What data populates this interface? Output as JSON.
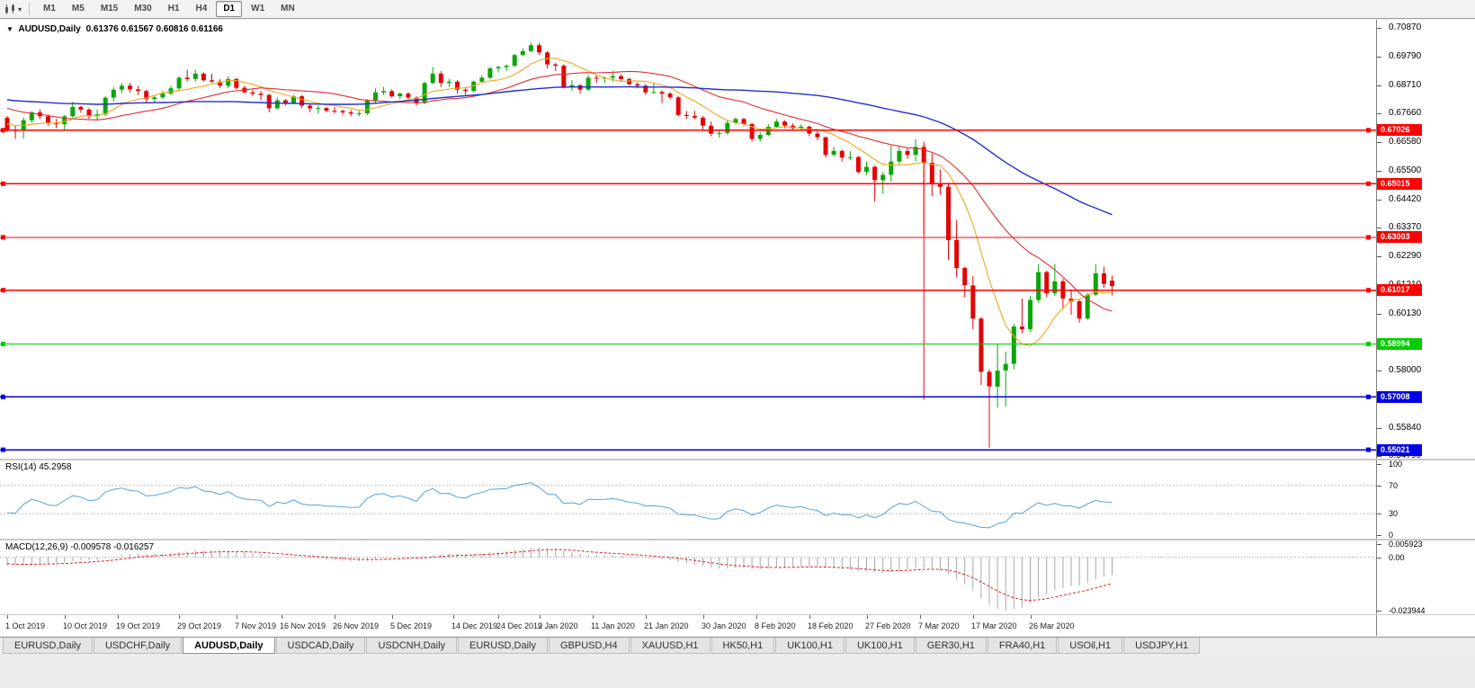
{
  "toolbar": {
    "timeframes": [
      "M1",
      "M5",
      "M15",
      "M30",
      "H1",
      "H4",
      "D1",
      "W1",
      "MN"
    ],
    "active_timeframe": "D1",
    "caret_glyph": "▾"
  },
  "chart_header": {
    "dropdown_glyph": "▼",
    "symbol": "AUDUSD,Daily",
    "ohlc": "0.61376 0.61567 0.60816 0.61166"
  },
  "chart_data": {
    "type": "candlestick",
    "symbol": "AUDUSD",
    "timeframe": "Daily",
    "current_ohlc": {
      "open": 0.61376,
      "high": 0.61567,
      "low": 0.60816,
      "close": 0.61166
    },
    "warmup_closes": [
      0.6825,
      0.684,
      0.6855,
      0.687,
      0.6885,
      0.6895,
      0.689,
      0.6875,
      0.689,
      0.6905,
      0.6895,
      0.688,
      0.6865,
      0.685,
      0.6835,
      0.682,
      0.6835,
      0.685,
      0.683,
      0.681,
      0.679,
      0.6775,
      0.676,
      0.6745,
      0.673,
      0.6745,
      0.673,
      0.6715,
      0.673,
      0.671
    ],
    "ohlc": [
      [
        0.675,
        0.6756,
        0.6695,
        0.6705
      ],
      [
        0.6705,
        0.672,
        0.667,
        0.67
      ],
      [
        0.67,
        0.675,
        0.6672,
        0.674
      ],
      [
        0.674,
        0.6775,
        0.673,
        0.677
      ],
      [
        0.677,
        0.678,
        0.6745,
        0.6755
      ],
      [
        0.6755,
        0.6762,
        0.672,
        0.673
      ],
      [
        0.673,
        0.6745,
        0.671,
        0.6725
      ],
      [
        0.6725,
        0.676,
        0.6705,
        0.6755
      ],
      [
        0.6755,
        0.681,
        0.675,
        0.679
      ],
      [
        0.679,
        0.6795,
        0.6768,
        0.678
      ],
      [
        0.678,
        0.6786,
        0.6745,
        0.6755
      ],
      [
        0.6755,
        0.678,
        0.674,
        0.6762
      ],
      [
        0.6762,
        0.683,
        0.6755,
        0.6825
      ],
      [
        0.6825,
        0.6865,
        0.681,
        0.6855
      ],
      [
        0.6855,
        0.688,
        0.684,
        0.687
      ],
      [
        0.687,
        0.688,
        0.6845,
        0.6856
      ],
      [
        0.6856,
        0.687,
        0.6835,
        0.685
      ],
      [
        0.685,
        0.6856,
        0.6805,
        0.682
      ],
      [
        0.682,
        0.6835,
        0.6805,
        0.6826
      ],
      [
        0.6826,
        0.685,
        0.682,
        0.684
      ],
      [
        0.684,
        0.687,
        0.6835,
        0.686
      ],
      [
        0.686,
        0.6905,
        0.685,
        0.69
      ],
      [
        0.69,
        0.693,
        0.6885,
        0.6895
      ],
      [
        0.6895,
        0.693,
        0.6885,
        0.6915
      ],
      [
        0.6915,
        0.692,
        0.6885,
        0.689
      ],
      [
        0.689,
        0.6915,
        0.688,
        0.6885
      ],
      [
        0.6885,
        0.6895,
        0.686,
        0.687
      ],
      [
        0.687,
        0.6905,
        0.686,
        0.6895
      ],
      [
        0.6895,
        0.69,
        0.6855,
        0.6862
      ],
      [
        0.6862,
        0.687,
        0.684,
        0.6845
      ],
      [
        0.6845,
        0.6855,
        0.683,
        0.684
      ],
      [
        0.684,
        0.685,
        0.6815,
        0.6835
      ],
      [
        0.6835,
        0.684,
        0.677,
        0.6785
      ],
      [
        0.6785,
        0.6825,
        0.678,
        0.6815
      ],
      [
        0.6815,
        0.682,
        0.6795,
        0.6805
      ],
      [
        0.6805,
        0.6835,
        0.68,
        0.683
      ],
      [
        0.683,
        0.6835,
        0.6785,
        0.6795
      ],
      [
        0.6795,
        0.68,
        0.677,
        0.6785
      ],
      [
        0.6785,
        0.6795,
        0.6765,
        0.6786
      ],
      [
        0.6786,
        0.679,
        0.677,
        0.6776
      ],
      [
        0.6776,
        0.679,
        0.6765,
        0.6775
      ],
      [
        0.6775,
        0.678,
        0.676,
        0.677
      ],
      [
        0.677,
        0.678,
        0.6755,
        0.6765
      ],
      [
        0.6765,
        0.6775,
        0.6755,
        0.6766
      ],
      [
        0.6766,
        0.682,
        0.676,
        0.6815
      ],
      [
        0.6815,
        0.686,
        0.6805,
        0.6845
      ],
      [
        0.6845,
        0.6865,
        0.6835,
        0.685
      ],
      [
        0.685,
        0.6856,
        0.6825,
        0.683
      ],
      [
        0.683,
        0.6845,
        0.682,
        0.684
      ],
      [
        0.684,
        0.6846,
        0.6815,
        0.6825
      ],
      [
        0.6825,
        0.683,
        0.6795,
        0.6805
      ],
      [
        0.6805,
        0.6885,
        0.68,
        0.688
      ],
      [
        0.688,
        0.694,
        0.6875,
        0.6915
      ],
      [
        0.6915,
        0.6925,
        0.6865,
        0.688
      ],
      [
        0.688,
        0.6895,
        0.6865,
        0.6885
      ],
      [
        0.6885,
        0.689,
        0.684,
        0.6855
      ],
      [
        0.6855,
        0.6865,
        0.6835,
        0.685
      ],
      [
        0.685,
        0.689,
        0.6845,
        0.6885
      ],
      [
        0.6885,
        0.691,
        0.688,
        0.69
      ],
      [
        0.69,
        0.694,
        0.6895,
        0.6935
      ],
      [
        0.6935,
        0.6945,
        0.692,
        0.694
      ],
      [
        0.694,
        0.695,
        0.6925,
        0.6945
      ],
      [
        0.6945,
        0.699,
        0.694,
        0.6985
      ],
      [
        0.6985,
        0.701,
        0.698,
        0.7
      ],
      [
        0.7,
        0.7032,
        0.6995,
        0.7022
      ],
      [
        0.7022,
        0.703,
        0.6985,
        0.6995
      ],
      [
        0.6995,
        0.7,
        0.6935,
        0.695
      ],
      [
        0.695,
        0.6955,
        0.6925,
        0.6945
      ],
      [
        0.6945,
        0.695,
        0.686,
        0.6865
      ],
      [
        0.6865,
        0.689,
        0.685,
        0.6872
      ],
      [
        0.6872,
        0.6876,
        0.684,
        0.6855
      ],
      [
        0.6855,
        0.691,
        0.685,
        0.69
      ],
      [
        0.69,
        0.691,
        0.688,
        0.6898
      ],
      [
        0.6898,
        0.6905,
        0.688,
        0.69
      ],
      [
        0.69,
        0.6925,
        0.6885,
        0.6906
      ],
      [
        0.6906,
        0.6912,
        0.6885,
        0.6895
      ],
      [
        0.6895,
        0.69,
        0.687,
        0.6876
      ],
      [
        0.6876,
        0.6882,
        0.686,
        0.687
      ],
      [
        0.687,
        0.6876,
        0.6835,
        0.6845
      ],
      [
        0.6845,
        0.688,
        0.684,
        0.6846
      ],
      [
        0.6846,
        0.6852,
        0.6805,
        0.684
      ],
      [
        0.684,
        0.6846,
        0.682,
        0.6826
      ],
      [
        0.6826,
        0.6832,
        0.6755,
        0.676
      ],
      [
        0.676,
        0.6775,
        0.6745,
        0.6756
      ],
      [
        0.6756,
        0.6775,
        0.6745,
        0.675
      ],
      [
        0.675,
        0.6756,
        0.67,
        0.672
      ],
      [
        0.672,
        0.6735,
        0.668,
        0.669
      ],
      [
        0.669,
        0.6705,
        0.6675,
        0.6692
      ],
      [
        0.6692,
        0.674,
        0.6685,
        0.673
      ],
      [
        0.673,
        0.675,
        0.6725,
        0.6745
      ],
      [
        0.6745,
        0.675,
        0.672,
        0.6726
      ],
      [
        0.6726,
        0.673,
        0.666,
        0.667
      ],
      [
        0.667,
        0.6695,
        0.666,
        0.6685
      ],
      [
        0.6685,
        0.6725,
        0.668,
        0.6715
      ],
      [
        0.6715,
        0.6745,
        0.671,
        0.6735
      ],
      [
        0.6735,
        0.674,
        0.671,
        0.672
      ],
      [
        0.672,
        0.673,
        0.67,
        0.671
      ],
      [
        0.671,
        0.6725,
        0.67,
        0.6716
      ],
      [
        0.6716,
        0.672,
        0.668,
        0.669
      ],
      [
        0.669,
        0.67,
        0.6665,
        0.6676
      ],
      [
        0.6676,
        0.668,
        0.66,
        0.661
      ],
      [
        0.661,
        0.664,
        0.6605,
        0.6625
      ],
      [
        0.6625,
        0.663,
        0.6585,
        0.66
      ],
      [
        0.66,
        0.6625,
        0.659,
        0.6602
      ],
      [
        0.6602,
        0.6606,
        0.654,
        0.6546
      ],
      [
        0.6546,
        0.6585,
        0.6535,
        0.6565
      ],
      [
        0.6565,
        0.657,
        0.6435,
        0.6515
      ],
      [
        0.6515,
        0.6545,
        0.6465,
        0.6535
      ],
      [
        0.6535,
        0.6645,
        0.651,
        0.6585
      ],
      [
        0.6585,
        0.664,
        0.6575,
        0.6625
      ],
      [
        0.6625,
        0.6635,
        0.6595,
        0.661
      ],
      [
        0.661,
        0.667,
        0.6585,
        0.664
      ],
      [
        0.664,
        0.665,
        0.6313,
        0.658
      ],
      [
        0.658,
        0.6615,
        0.6455,
        0.65
      ],
      [
        0.65,
        0.6555,
        0.646,
        0.649
      ],
      [
        0.649,
        0.6505,
        0.6215,
        0.629
      ],
      [
        0.629,
        0.6365,
        0.615,
        0.6185
      ],
      [
        0.6185,
        0.619,
        0.6075,
        0.612
      ],
      [
        0.612,
        0.6155,
        0.5955,
        0.5995
      ],
      [
        0.5995,
        0.6,
        0.5745,
        0.5795
      ],
      [
        0.5795,
        0.5805,
        0.551,
        0.574
      ],
      [
        0.574,
        0.59,
        0.566,
        0.58
      ],
      [
        0.58,
        0.587,
        0.5665,
        0.5825
      ],
      [
        0.5825,
        0.5975,
        0.5805,
        0.5965
      ],
      [
        0.5965,
        0.607,
        0.594,
        0.5955
      ],
      [
        0.5955,
        0.608,
        0.5945,
        0.6065
      ],
      [
        0.6065,
        0.62,
        0.6055,
        0.617
      ],
      [
        0.617,
        0.6175,
        0.6075,
        0.609
      ],
      [
        0.609,
        0.62,
        0.608,
        0.6135
      ],
      [
        0.6135,
        0.6145,
        0.6035,
        0.607
      ],
      [
        0.607,
        0.6105,
        0.601,
        0.606
      ],
      [
        0.606,
        0.6065,
        0.598,
        0.5995
      ],
      [
        0.5995,
        0.609,
        0.599,
        0.6085
      ],
      [
        0.6085,
        0.62,
        0.608,
        0.6165
      ],
      [
        0.6165,
        0.619,
        0.611,
        0.6125
      ],
      [
        0.61376,
        0.61567,
        0.60816,
        0.61166
      ]
    ],
    "y_axis": {
      "max": 0.71175,
      "min": 0.54688,
      "labels": [
        "0.70870",
        "0.69790",
        "0.68710",
        "0.67660",
        "0.66580",
        "0.65500",
        "0.64420",
        "0.63370",
        "0.62290",
        "0.61210",
        "0.60130",
        "0.59050",
        "0.58000",
        "0.56920",
        "0.55840",
        "0.54790"
      ]
    },
    "x_axis_labels": [
      {
        "label": "1 Oct 2019",
        "i": 0
      },
      {
        "label": "10 Oct 2019",
        "i": 7
      },
      {
        "label": "19 Oct 2019",
        "i": 13.5
      },
      {
        "label": "29 Oct 2019",
        "i": 21
      },
      {
        "label": "7 Nov 2019",
        "i": 28
      },
      {
        "label": "16 Nov 2019",
        "i": 33.5
      },
      {
        "label": "26 Nov 2019",
        "i": 40
      },
      {
        "label": "5 Dec 2019",
        "i": 47
      },
      {
        "label": "14 Dec 2019",
        "i": 54.5
      },
      {
        "label": "24 Dec 2019",
        "i": 60
      },
      {
        "label": "2 Jan 2020",
        "i": 65
      },
      {
        "label": "11 Jan 2020",
        "i": 71.5
      },
      {
        "label": "21 Jan 2020",
        "i": 78
      },
      {
        "label": "30 Jan 2020",
        "i": 85
      },
      {
        "label": "8 Feb 2020",
        "i": 91.5
      },
      {
        "label": "18 Feb 2020",
        "i": 98
      },
      {
        "label": "27 Feb 2020",
        "i": 105
      },
      {
        "label": "7 Mar 2020",
        "i": 111.5
      },
      {
        "label": "17 Mar 2020",
        "i": 118
      },
      {
        "label": "26 Mar 2020",
        "i": 125
      }
    ],
    "colors": {
      "up": "#0CA50C",
      "down": "#E00707",
      "ma_fast": "#EFA720",
      "ma_mid": "#E03030",
      "ma_slow": "#2030C8"
    },
    "moving_averages": [
      {
        "period": 8,
        "color_key": "ma_fast",
        "width": 1.1
      },
      {
        "period": 20,
        "color_key": "ma_mid",
        "width": 1.1
      },
      {
        "period": 50,
        "color_key": "ma_slow",
        "width": 1.4
      }
    ],
    "hlines": [
      {
        "price": 0.67026,
        "label": "0.67026",
        "color": "#FF0000"
      },
      {
        "price": 0.65015,
        "label": "0.65015",
        "color": "#FF0000"
      },
      {
        "price": 0.63003,
        "label": "0.63003",
        "color": "#FF0000"
      },
      {
        "price": 0.61017,
        "label": "0.61017",
        "color": "#FF0000"
      },
      {
        "price": 0.58994,
        "label": "0.58994",
        "color": "#00CE00"
      },
      {
        "price": 0.57008,
        "label": "0.57008",
        "color": "#0000E8"
      },
      {
        "price": 0.55021,
        "label": "0.55021",
        "color": "#0000E8"
      }
    ],
    "vline": {
      "i": 112,
      "from": 0.666,
      "to": 0.569,
      "color": "#FF0000"
    },
    "rsi_panel": {
      "label": "RSI(14) 45.2958",
      "period": 14,
      "current": 45.2958,
      "color": "#55A0DE",
      "levels": [
        70,
        30
      ],
      "range": {
        "max": 105,
        "min": -5
      },
      "scale": [
        {
          "v": 100,
          "t": "100"
        },
        {
          "v": 70,
          "t": "70"
        },
        {
          "v": 30,
          "t": "30"
        },
        {
          "v": 0,
          "t": "0"
        }
      ]
    },
    "macd_panel": {
      "label": "MACD(12,26,9) -0.009578 -0.016257",
      "fast": 12,
      "slow": 26,
      "signal": 9,
      "macd_value": -0.009578,
      "signal_value": -0.016257,
      "min_value": -0.023944,
      "histogram_color": "#A8A8A8",
      "signal_color": "#E02020",
      "range": {
        "max": 0.0075,
        "min": -0.0255
      },
      "scale": [
        {
          "v": 0.005923,
          "t": "0.005923"
        },
        {
          "v": 0,
          "t": "0.00"
        },
        {
          "v": -0.023944,
          "t": "-0.023944"
        }
      ]
    }
  },
  "tabs": {
    "items": [
      "EURUSD,Daily",
      "USDCHF,Daily",
      "AUDUSD,Daily",
      "USDCAD,Daily",
      "USDCNH,Daily",
      "EURUSD,Daily",
      "GBPUSD,H4",
      "XAUUSD,H1",
      "HK50,H1",
      "UK100,H1",
      "UK100,H1",
      "GER30,H1",
      "FRA40,H1",
      "USOil,H1",
      "USDJPY,H1"
    ],
    "active_index": 2
  }
}
